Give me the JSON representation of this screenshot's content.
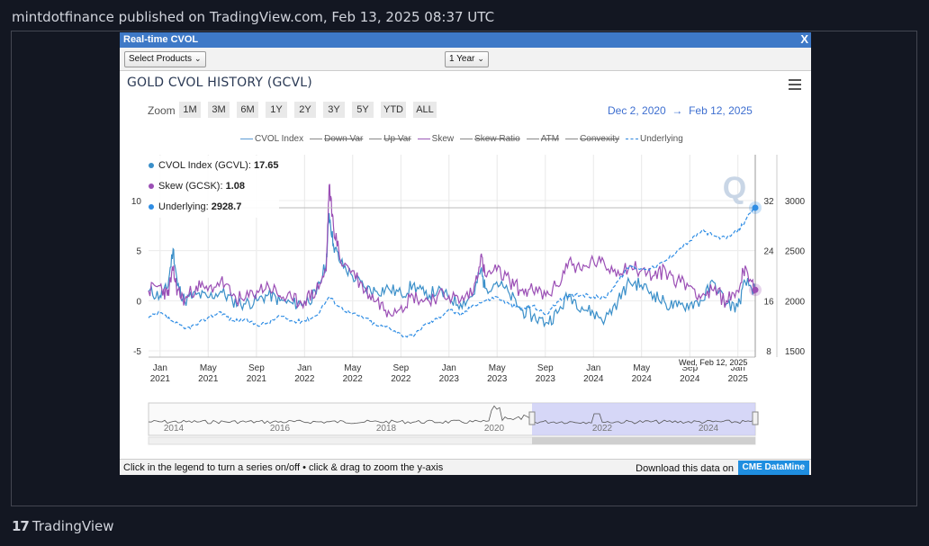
{
  "header": {
    "published": "mintdotfinance published on TradingView.com, Feb 13, 2025 08:37 UTC"
  },
  "widget": {
    "title": "Real-time CVOL",
    "close": "X",
    "select_products": "Select Products",
    "period": "1 Year",
    "chart_title": "GOLD CVOL HISTORY (GCVL)",
    "zoom_label": "Zoom",
    "zoom_buttons": [
      "1M",
      "3M",
      "6M",
      "1Y",
      "2Y",
      "3Y",
      "5Y",
      "YTD",
      "ALL"
    ],
    "date_from": "Dec 2, 2020",
    "arrow": "→",
    "date_to": "Feb 12, 2025",
    "footer_hint": "Click in the legend to turn a series on/off • click & drag to zoom the y-axis",
    "footer_download": "Download this data on",
    "cme_button": "CME DataMine",
    "watermark": "Q"
  },
  "legend": [
    {
      "label": "CVOL Index",
      "on": true,
      "color": "#5b9bd5"
    },
    {
      "label": "Down Var",
      "on": false,
      "color": "#888888"
    },
    {
      "label": "Up Var",
      "on": false,
      "color": "#888888"
    },
    {
      "label": "Skew",
      "on": true,
      "color": "#9b59b6"
    },
    {
      "label": "Skew Ratio",
      "on": false,
      "color": "#888888"
    },
    {
      "label": "ATM",
      "on": false,
      "color": "#888888"
    },
    {
      "label": "Convexity",
      "on": false,
      "color": "#888888"
    },
    {
      "label": "Underlying",
      "on": true,
      "color": "#2e86de",
      "dashed": true
    }
  ],
  "tooltip": {
    "cvol_label": "CVOL Index (GCVL):",
    "cvol_value": "17.65",
    "skew_label": "Skew (GCSK):",
    "skew_value": "1.08",
    "underlying_label": "Underlying:",
    "underlying_value": "2928.7",
    "date": "Wed, Feb 12, 2025"
  },
  "colors": {
    "cvol": "#3a8fc9",
    "skew": "#9b4fb5",
    "underlying": "#2f8de4",
    "navigator_band": "#c9cbf5"
  },
  "chart_data": {
    "type": "line",
    "title": "GOLD CVOL HISTORY (GCVL)",
    "x_axis": {
      "range": [
        "2020-12-02",
        "2025-02-12"
      ],
      "ticks": [
        {
          "m": "Jan",
          "y": "2021",
          "t": 2021.0
        },
        {
          "m": "May",
          "y": "2021",
          "t": 2021.333
        },
        {
          "m": "Sep",
          "y": "2021",
          "t": 2021.667
        },
        {
          "m": "Jan",
          "y": "2022",
          "t": 2022.0
        },
        {
          "m": "May",
          "y": "2022",
          "t": 2022.333
        },
        {
          "m": "Sep",
          "y": "2022",
          "t": 2022.667
        },
        {
          "m": "Jan",
          "y": "2023",
          "t": 2023.0
        },
        {
          "m": "May",
          "y": "2023",
          "t": 2023.333
        },
        {
          "m": "Sep",
          "y": "2023",
          "t": 2023.667
        },
        {
          "m": "Jan",
          "y": "2024",
          "t": 2024.0
        },
        {
          "m": "May",
          "y": "2024",
          "t": 2024.333
        },
        {
          "m": "Sep",
          "y": "2024",
          "t": 2024.667
        },
        {
          "m": "Jan",
          "y": "2025",
          "t": 2025.0
        }
      ]
    },
    "y_axes": {
      "skew": {
        "ticks": [
          -5,
          0,
          5,
          10
        ],
        "range": [
          -5,
          10
        ]
      },
      "cvol": {
        "ticks": [
          8,
          16,
          24,
          32
        ],
        "range": [
          8,
          32
        ]
      },
      "underlying": {
        "ticks": [
          1500,
          2000,
          2500,
          3000
        ],
        "range": [
          1500,
          3000
        ]
      }
    },
    "series": [
      {
        "name": "CVOL Index",
        "axis": "cvol",
        "points": [
          [
            2020.92,
            17.5
          ],
          [
            2021.0,
            16.8
          ],
          [
            2021.05,
            18.0
          ],
          [
            2021.09,
            24.3
          ],
          [
            2021.12,
            18.5
          ],
          [
            2021.17,
            16.0
          ],
          [
            2021.25,
            17.0
          ],
          [
            2021.33,
            16.5
          ],
          [
            2021.42,
            17.5
          ],
          [
            2021.5,
            16.0
          ],
          [
            2021.58,
            15.5
          ],
          [
            2021.67,
            16.0
          ],
          [
            2021.75,
            17.0
          ],
          [
            2021.83,
            16.0
          ],
          [
            2021.92,
            15.5
          ],
          [
            2022.0,
            15.8
          ],
          [
            2022.08,
            17.0
          ],
          [
            2022.15,
            22.0
          ],
          [
            2022.17,
            30.0
          ],
          [
            2022.2,
            25.0
          ],
          [
            2022.25,
            22.0
          ],
          [
            2022.33,
            20.0
          ],
          [
            2022.42,
            18.0
          ],
          [
            2022.5,
            17.5
          ],
          [
            2022.58,
            18.0
          ],
          [
            2022.67,
            17.0
          ],
          [
            2022.75,
            18.5
          ],
          [
            2022.83,
            17.0
          ],
          [
            2022.92,
            17.5
          ],
          [
            2023.0,
            16.5
          ],
          [
            2023.08,
            15.5
          ],
          [
            2023.17,
            17.0
          ],
          [
            2023.22,
            21.0
          ],
          [
            2023.25,
            18.0
          ],
          [
            2023.33,
            19.0
          ],
          [
            2023.42,
            17.0
          ],
          [
            2023.5,
            14.5
          ],
          [
            2023.58,
            13.5
          ],
          [
            2023.67,
            12.5
          ],
          [
            2023.75,
            14.0
          ],
          [
            2023.83,
            17.0
          ],
          [
            2023.92,
            15.0
          ],
          [
            2024.0,
            14.0
          ],
          [
            2024.08,
            13.0
          ],
          [
            2024.17,
            16.0
          ],
          [
            2024.25,
            19.0
          ],
          [
            2024.33,
            18.5
          ],
          [
            2024.42,
            17.0
          ],
          [
            2024.5,
            15.5
          ],
          [
            2024.58,
            15.0
          ],
          [
            2024.67,
            15.5
          ],
          [
            2024.75,
            16.0
          ],
          [
            2024.83,
            19.0
          ],
          [
            2024.92,
            15.5
          ],
          [
            2025.0,
            15.0
          ],
          [
            2025.05,
            19.0
          ],
          [
            2025.12,
            17.65
          ]
        ]
      },
      {
        "name": "Skew",
        "axis": "skew",
        "points": [
          [
            2020.92,
            1.0
          ],
          [
            2021.0,
            1.5
          ],
          [
            2021.05,
            0.5
          ],
          [
            2021.09,
            3.0
          ],
          [
            2021.12,
            1.0
          ],
          [
            2021.17,
            0.0
          ],
          [
            2021.25,
            1.5
          ],
          [
            2021.33,
            1.0
          ],
          [
            2021.42,
            2.0
          ],
          [
            2021.5,
            0.5
          ],
          [
            2021.58,
            0.0
          ],
          [
            2021.67,
            1.0
          ],
          [
            2021.75,
            1.5
          ],
          [
            2021.83,
            0.5
          ],
          [
            2021.92,
            0.0
          ],
          [
            2022.0,
            0.0
          ],
          [
            2022.08,
            1.0
          ],
          [
            2022.15,
            3.0
          ],
          [
            2022.17,
            11.5
          ],
          [
            2022.2,
            7.5
          ],
          [
            2022.25,
            4.0
          ],
          [
            2022.33,
            3.0
          ],
          [
            2022.42,
            1.0
          ],
          [
            2022.5,
            0.0
          ],
          [
            2022.58,
            -1.0
          ],
          [
            2022.67,
            -0.5
          ],
          [
            2022.75,
            0.5
          ],
          [
            2022.83,
            0.0
          ],
          [
            2022.92,
            0.5
          ],
          [
            2023.0,
            0.5
          ],
          [
            2023.08,
            0.0
          ],
          [
            2023.17,
            1.0
          ],
          [
            2023.22,
            4.5
          ],
          [
            2023.25,
            2.5
          ],
          [
            2023.33,
            3.0
          ],
          [
            2023.42,
            2.0
          ],
          [
            2023.5,
            1.0
          ],
          [
            2023.58,
            1.0
          ],
          [
            2023.67,
            0.5
          ],
          [
            2023.75,
            1.5
          ],
          [
            2023.83,
            4.0
          ],
          [
            2023.92,
            3.0
          ],
          [
            2024.0,
            4.0
          ],
          [
            2024.08,
            3.5
          ],
          [
            2024.17,
            3.0
          ],
          [
            2024.25,
            3.5
          ],
          [
            2024.33,
            3.0
          ],
          [
            2024.42,
            2.5
          ],
          [
            2024.5,
            3.0
          ],
          [
            2024.58,
            2.0
          ],
          [
            2024.67,
            1.5
          ],
          [
            2024.75,
            0.5
          ],
          [
            2024.83,
            1.0
          ],
          [
            2024.92,
            0.0
          ],
          [
            2025.0,
            1.0
          ],
          [
            2025.05,
            3.5
          ],
          [
            2025.12,
            1.08
          ]
        ]
      },
      {
        "name": "Underlying",
        "axis": "underlying",
        "points": [
          [
            2020.92,
            1830
          ],
          [
            2021.0,
            1880
          ],
          [
            2021.08,
            1800
          ],
          [
            2021.17,
            1720
          ],
          [
            2021.25,
            1760
          ],
          [
            2021.33,
            1830
          ],
          [
            2021.42,
            1890
          ],
          [
            2021.5,
            1800
          ],
          [
            2021.58,
            1810
          ],
          [
            2021.67,
            1760
          ],
          [
            2021.75,
            1780
          ],
          [
            2021.83,
            1850
          ],
          [
            2021.92,
            1790
          ],
          [
            2022.0,
            1800
          ],
          [
            2022.08,
            1850
          ],
          [
            2022.17,
            2040
          ],
          [
            2022.25,
            1930
          ],
          [
            2022.33,
            1870
          ],
          [
            2022.42,
            1830
          ],
          [
            2022.5,
            1750
          ],
          [
            2022.58,
            1740
          ],
          [
            2022.67,
            1660
          ],
          [
            2022.75,
            1640
          ],
          [
            2022.83,
            1760
          ],
          [
            2022.92,
            1820
          ],
          [
            2023.0,
            1920
          ],
          [
            2023.08,
            1850
          ],
          [
            2023.17,
            1960
          ],
          [
            2023.25,
            2000
          ],
          [
            2023.33,
            2040
          ],
          [
            2023.42,
            1960
          ],
          [
            2023.5,
            1920
          ],
          [
            2023.58,
            1950
          ],
          [
            2023.67,
            1860
          ],
          [
            2023.75,
            1990
          ],
          [
            2023.83,
            2040
          ],
          [
            2023.92,
            2060
          ],
          [
            2024.0,
            2040
          ],
          [
            2024.08,
            2030
          ],
          [
            2024.17,
            2200
          ],
          [
            2024.25,
            2350
          ],
          [
            2024.33,
            2320
          ],
          [
            2024.42,
            2330
          ],
          [
            2024.5,
            2400
          ],
          [
            2024.58,
            2500
          ],
          [
            2024.67,
            2600
          ],
          [
            2024.75,
            2700
          ],
          [
            2024.83,
            2650
          ],
          [
            2024.92,
            2620
          ],
          [
            2025.0,
            2700
          ],
          [
            2025.05,
            2800
          ],
          [
            2025.12,
            2928.7
          ]
        ]
      }
    ],
    "navigator": {
      "labels": [
        "2014",
        "2016",
        "2018",
        "2020",
        "2022",
        "2024"
      ]
    }
  },
  "branding": {
    "logo_mark": "17",
    "logo_text": "TradingView"
  }
}
